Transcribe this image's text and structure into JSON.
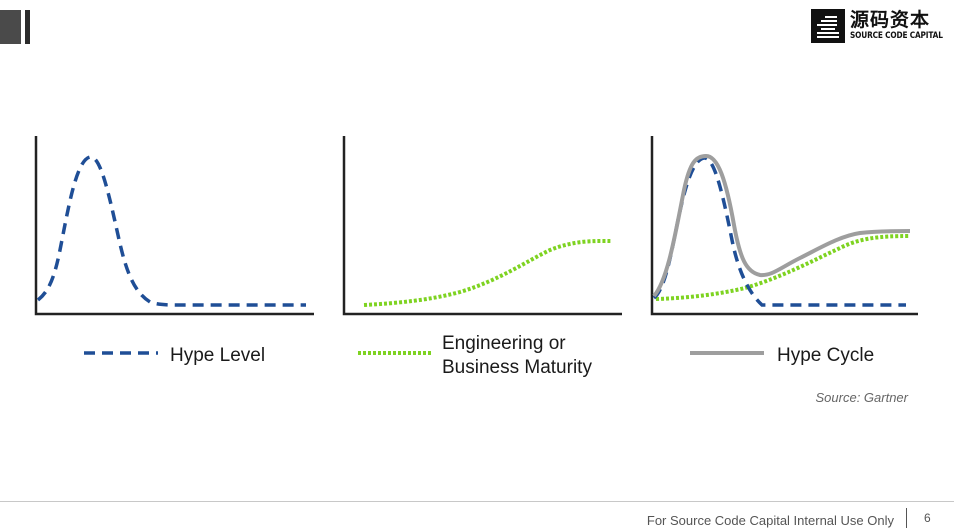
{
  "logo": {
    "name_cn": "源码资本",
    "name_en": "SOURCE CODE CAPITAL"
  },
  "panels": [
    {
      "legend": [
        "Hype Level"
      ],
      "series": "hype-level"
    },
    {
      "legend": [
        "Engineering or",
        "Business Maturity"
      ],
      "series": "maturity"
    },
    {
      "legend": [
        "Hype Cycle"
      ],
      "series": "hype-cycle"
    }
  ],
  "colors": {
    "hype_level": "#1f4e96",
    "maturity": "#7ed321",
    "hype_cycle": "#9e9e9e",
    "axis": "#222222"
  },
  "source": "Source: Gartner",
  "footer": {
    "text": "For Source Code Capital Internal Use Only",
    "page_number": "6"
  }
}
